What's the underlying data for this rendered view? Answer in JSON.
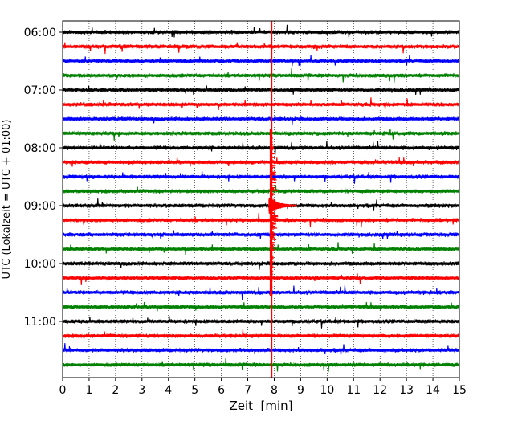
{
  "chart_data": {
    "type": "line",
    "chart_kind": "helicorder",
    "title": "",
    "xlabel": "Zeit  [min]",
    "ylabel": "UTC (Lokalzeit = UTC + 01:00)",
    "xlim": [
      0,
      15
    ],
    "x_ticks": [
      "0",
      "1",
      "2",
      "3",
      "4",
      "5",
      "6",
      "7",
      "8",
      "9",
      "10",
      "11",
      "12",
      "13",
      "14",
      "15"
    ],
    "y_tick_labels": [
      "06:00",
      "07:00",
      "08:00",
      "09:00",
      "10:00",
      "11:00"
    ],
    "y_tick_trace_index": [
      0,
      4,
      8,
      12,
      16,
      20
    ],
    "trace_count": 24,
    "trace_colors": [
      "#000000",
      "#ff0000",
      "#0000ff",
      "#008000"
    ],
    "grid": "vertical-dotted",
    "event_marker": {
      "x": 7.9,
      "color": "#ff0000"
    },
    "event": {
      "start_trace": 7,
      "x_start": 7.8,
      "peak_trace": 12,
      "end_trace": 18
    }
  }
}
